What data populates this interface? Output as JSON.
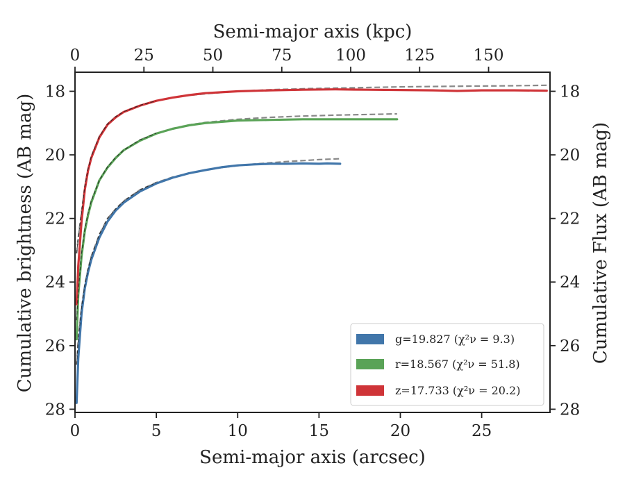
{
  "chart_data": {
    "type": "line",
    "xlabel": "Semi-major axis (arcsec)",
    "ylabel": "Cumulative brightness (AB mag)",
    "ylabel_right": "Cumulative Flux (AB mag)",
    "xlabel_top": "Semi-major axis (kpc)",
    "xlim": [
      0,
      29.2
    ],
    "ylim": [
      28.1,
      17.4
    ],
    "y_inverted": true,
    "grid": false,
    "legend_position": "lower-right",
    "x_ticks": [
      0,
      5,
      10,
      15,
      20,
      25
    ],
    "y_ticks": [
      18,
      20,
      22,
      24,
      26,
      28
    ],
    "top_ticks": [
      0,
      25,
      50,
      75,
      100,
      125,
      150
    ],
    "top_kpc_per_arcsec": 5.9,
    "series": [
      {
        "name": "g",
        "legend": "g=19.827 (χ²ν = 9.3)",
        "color": "#4176aa",
        "x": [
          0.1,
          0.2,
          0.4,
          0.6,
          0.8,
          1.0,
          1.5,
          2.0,
          2.5,
          3.0,
          4.0,
          5.0,
          6.0,
          7.0,
          8.0,
          9.0,
          10.0,
          11.0,
          12.0,
          13.0,
          14.0,
          15.0,
          15.5,
          16.3
        ],
        "values": [
          27.8,
          26.4,
          25.0,
          24.2,
          23.7,
          23.3,
          22.6,
          22.1,
          21.75,
          21.5,
          21.15,
          20.9,
          20.72,
          20.58,
          20.48,
          20.39,
          20.33,
          20.3,
          20.28,
          20.28,
          20.27,
          20.28,
          20.27,
          20.28
        ]
      },
      {
        "name": "r",
        "legend": "r=18.567 (χ²ν = 51.8)",
        "color": "#5aa357",
        "x": [
          0.1,
          0.2,
          0.4,
          0.6,
          0.8,
          1.0,
          1.5,
          2.0,
          2.5,
          3.0,
          4.0,
          5.0,
          6.0,
          7.0,
          8.0,
          10.0,
          12.0,
          14.0,
          16.0,
          18.0,
          19.8
        ],
        "values": [
          25.8,
          24.4,
          23.2,
          22.4,
          21.9,
          21.5,
          20.8,
          20.4,
          20.1,
          19.85,
          19.55,
          19.33,
          19.18,
          19.07,
          19.0,
          18.92,
          18.9,
          18.88,
          18.88,
          18.88,
          18.88
        ]
      },
      {
        "name": "z",
        "legend": "z=17.733 (χ²ν = 20.2)",
        "color": "#cf3438",
        "x": [
          0.1,
          0.2,
          0.4,
          0.6,
          0.8,
          1.0,
          1.5,
          2.0,
          2.5,
          3.0,
          4.0,
          5.0,
          6.0,
          7.0,
          8.0,
          10.0,
          12.0,
          14.0,
          16.0,
          18.0,
          20.0,
          22.0,
          23.5,
          25.0,
          27.0,
          29.0
        ],
        "values": [
          24.7,
          23.5,
          22.1,
          21.1,
          20.5,
          20.1,
          19.45,
          19.05,
          18.82,
          18.65,
          18.45,
          18.3,
          18.2,
          18.12,
          18.06,
          18.0,
          17.97,
          17.95,
          17.94,
          17.95,
          17.96,
          17.97,
          17.99,
          17.97,
          17.97,
          17.98
        ]
      }
    ],
    "model_fits": [
      {
        "name": "g-model",
        "x": [
          0.1,
          0.2,
          0.4,
          0.6,
          0.8,
          1.0,
          1.5,
          2.0,
          2.5,
          3.0,
          4.0,
          5.0,
          6.0,
          7.0,
          8.0,
          9.0,
          10.0,
          11.0,
          12.0,
          13.0,
          14.0,
          15.0,
          16.3
        ],
        "values": [
          26.6,
          25.8,
          24.8,
          24.1,
          23.6,
          23.2,
          22.5,
          22.0,
          21.7,
          21.45,
          21.1,
          20.87,
          20.7,
          20.58,
          20.48,
          20.4,
          20.34,
          20.29,
          20.25,
          20.21,
          20.18,
          20.15,
          20.12
        ]
      },
      {
        "name": "r-model",
        "x": [
          0.1,
          0.2,
          0.4,
          0.6,
          0.8,
          1.0,
          1.5,
          2.0,
          2.5,
          3.0,
          4.0,
          5.0,
          6.0,
          7.0,
          8.0,
          10.0,
          12.0,
          14.0,
          16.0,
          18.0,
          19.8
        ],
        "values": [
          25.2,
          24.3,
          23.1,
          22.35,
          21.85,
          21.45,
          20.8,
          20.38,
          20.08,
          19.85,
          19.53,
          19.32,
          19.17,
          19.06,
          18.98,
          18.88,
          18.82,
          18.78,
          18.75,
          18.73,
          18.71
        ]
      },
      {
        "name": "z-model",
        "x": [
          0.1,
          0.2,
          0.4,
          0.6,
          0.8,
          1.0,
          1.5,
          2.0,
          2.5,
          3.0,
          4.0,
          5.0,
          6.0,
          7.0,
          8.0,
          10.0,
          12.0,
          14.0,
          16.0,
          18.0,
          20.0,
          22.0,
          24.0,
          26.0,
          28.0,
          29.0
        ],
        "values": [
          23.1,
          22.6,
          21.8,
          21.0,
          20.45,
          20.05,
          19.42,
          19.03,
          18.8,
          18.64,
          18.44,
          18.3,
          18.2,
          18.13,
          18.08,
          18.0,
          17.95,
          17.92,
          17.9,
          17.88,
          17.86,
          17.85,
          17.84,
          17.83,
          17.82,
          17.81
        ]
      }
    ],
    "model_color": "#888888"
  }
}
